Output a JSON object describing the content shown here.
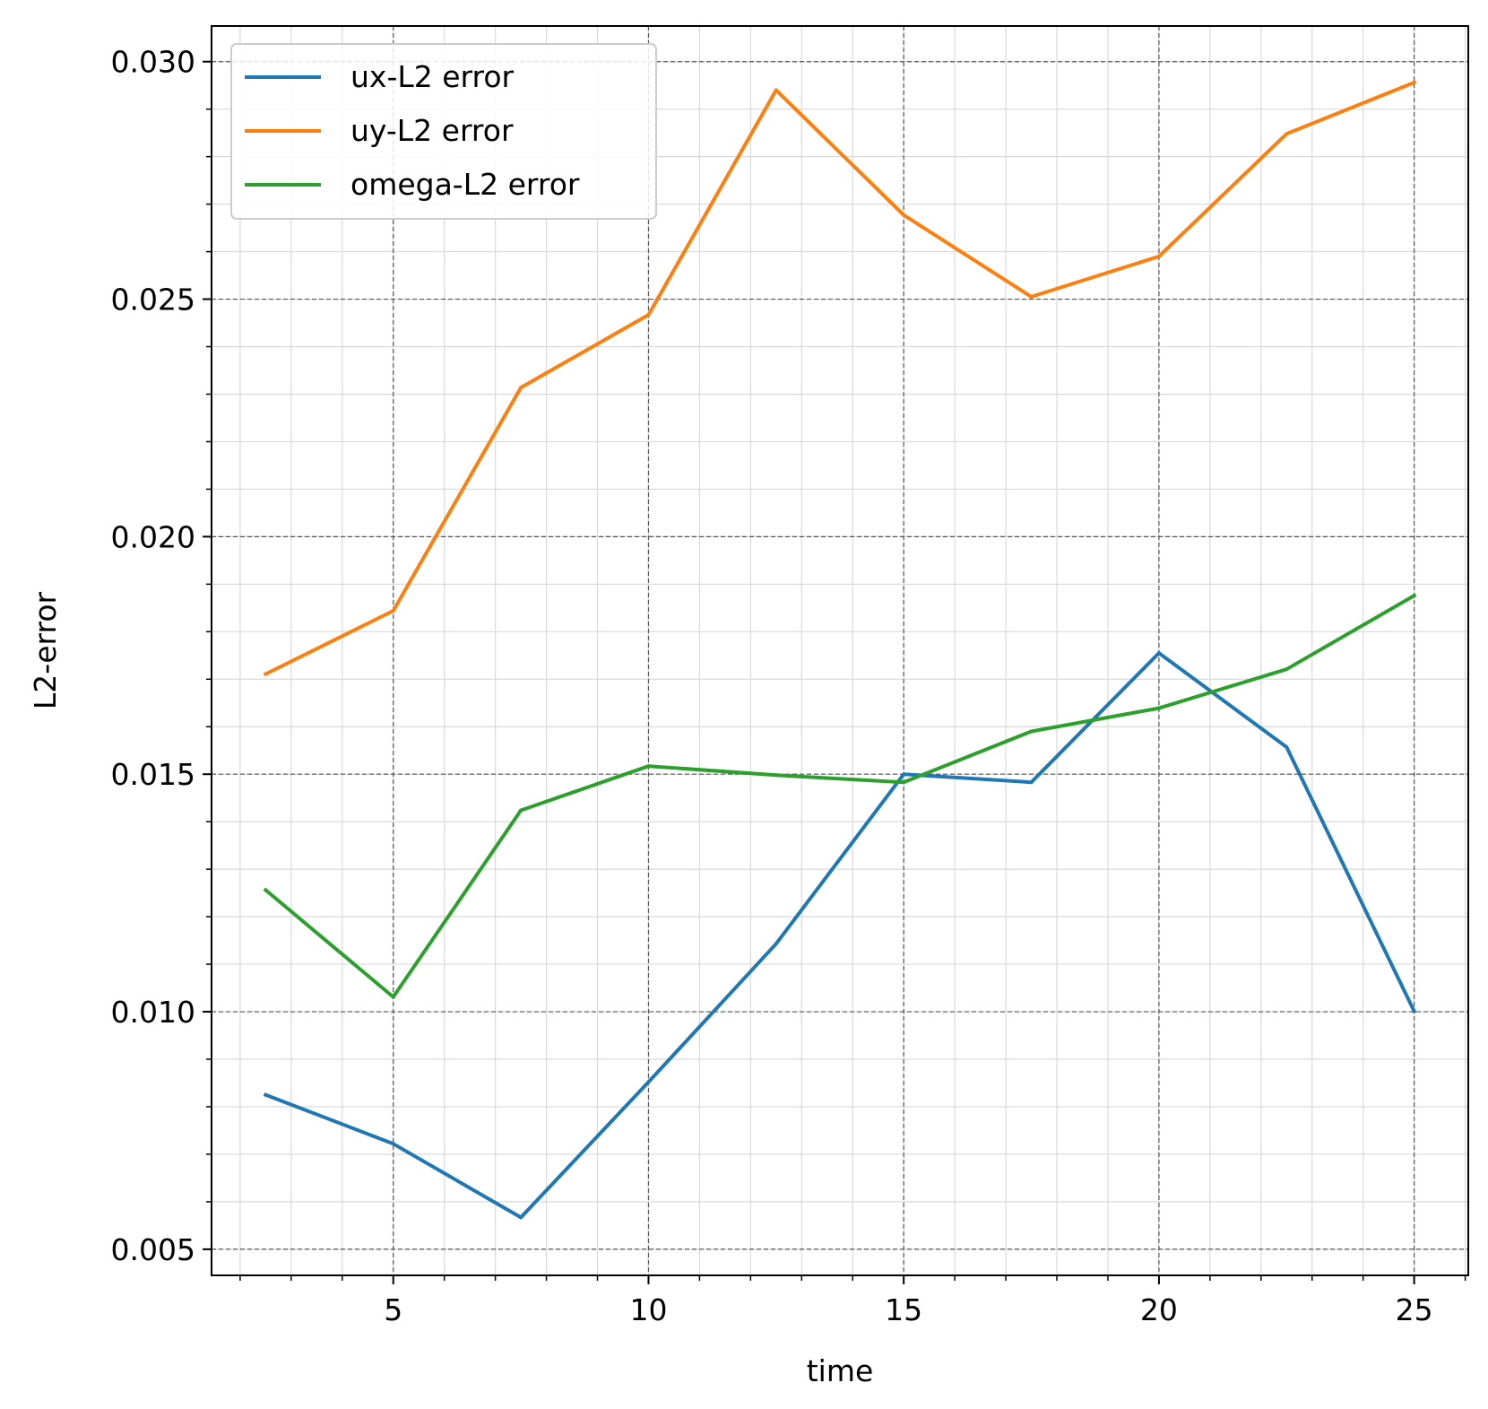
{
  "chart_data": {
    "type": "line",
    "title": "",
    "xlabel": "time",
    "ylabel": "L2-error",
    "xlim": [
      1.44,
      26.06
    ],
    "ylim": [
      0.00445,
      0.03075
    ],
    "x_ticks": [
      5,
      10,
      15,
      20,
      25
    ],
    "x_tick_labels": [
      "5",
      "10",
      "15",
      "20",
      "25"
    ],
    "x_minor_step": 1,
    "y_ticks": [
      0.005,
      0.01,
      0.015,
      0.02,
      0.025,
      0.03
    ],
    "y_tick_labels": [
      "0.005",
      "0.010",
      "0.015",
      "0.020",
      "0.025",
      "0.030"
    ],
    "y_minor_step": 0.001,
    "grid": true,
    "legend_position": "top-left",
    "x": [
      2.5,
      5,
      7.5,
      10,
      12.5,
      15,
      17.5,
      20,
      22.5,
      25
    ],
    "series": [
      {
        "name": "ux-L2 error",
        "color": "#1f77b4",
        "values": [
          0.00825,
          0.00722,
          0.00567,
          0.00852,
          0.01143,
          0.015,
          0.01483,
          0.01755,
          0.01557,
          0.01001
        ]
      },
      {
        "name": "uy-L2 error",
        "color": "#ff7f0e",
        "values": [
          0.01711,
          0.01844,
          0.02314,
          0.02467,
          0.0294,
          0.02677,
          0.02505,
          0.0259,
          0.02848,
          0.02956
        ]
      },
      {
        "name": "omega-L2 error",
        "color": "#2ca02c",
        "values": [
          0.01256,
          0.01031,
          0.01424,
          0.01517,
          0.01498,
          0.01483,
          0.0159,
          0.01639,
          0.01721,
          0.01876
        ]
      }
    ]
  }
}
